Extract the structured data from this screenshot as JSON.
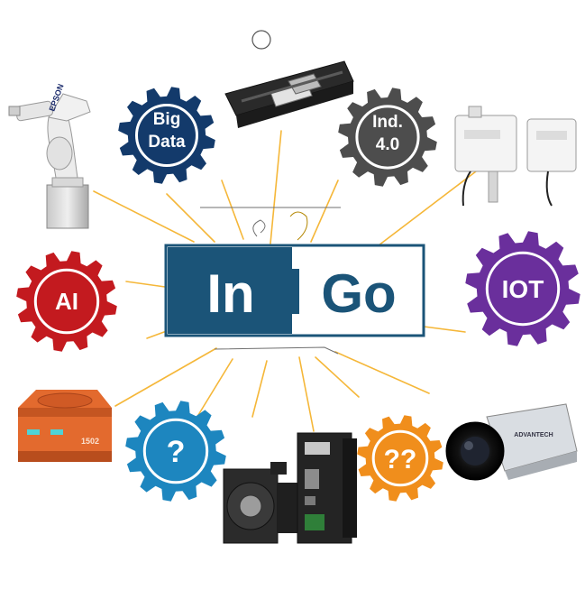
{
  "logo": {
    "left": "In",
    "right": "Go",
    "dark_color": "#1b5478"
  },
  "gears": {
    "big_data": {
      "line1": "Big",
      "line2": "Data",
      "color": "#133a6b"
    },
    "industry": {
      "line1": "Ind.",
      "line2": "4.0",
      "color": "#4d4d4d"
    },
    "ai": {
      "label": "AI",
      "color": "#c31a1f"
    },
    "iot": {
      "label": "IOT",
      "color": "#6a2f9c"
    },
    "unknown_one": {
      "label": "?",
      "color": "#1d86bf"
    },
    "unknown_two": {
      "label": "??",
      "color": "#f08e1c"
    }
  },
  "devices": {
    "robot_brand": "EPSON",
    "agv_number": "1502",
    "camera_brand": "ADVANTECH"
  },
  "connector_color": "#f5b739"
}
